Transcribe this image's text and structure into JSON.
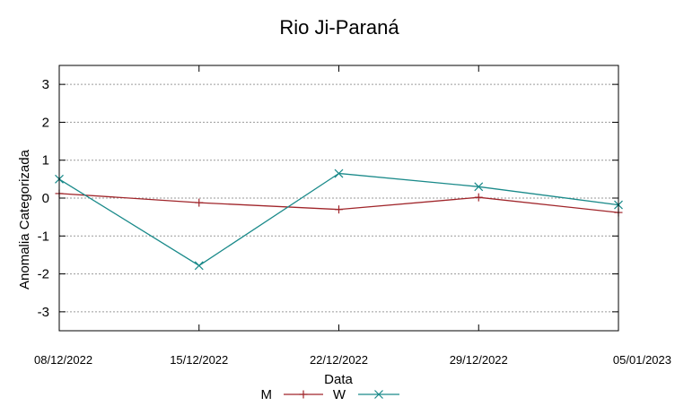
{
  "chart_data": {
    "type": "line",
    "title": "Rio Ji-Paraná",
    "xlabel": "Data",
    "ylabel": "Anomalia Categorizada",
    "categories": [
      "08/12/2022",
      "15/12/2022",
      "22/12/2022",
      "29/12/2022",
      "05/01/2023"
    ],
    "yticks": [
      "-3",
      "-2",
      "-1",
      "0",
      "1",
      "2",
      "3"
    ],
    "ylim": [
      -3.5,
      3.5
    ],
    "grid": "horizontal dotted",
    "legend_position": "bottom-center",
    "series": [
      {
        "name": "M",
        "color": "#a0252a",
        "marker": "plus",
        "values": [
          0.12,
          -0.12,
          -0.3,
          0.02,
          -0.38
        ]
      },
      {
        "name": "W",
        "color": "#1a8a8a",
        "marker": "cross",
        "values": [
          0.5,
          -1.78,
          0.65,
          0.3,
          -0.18
        ]
      }
    ]
  }
}
